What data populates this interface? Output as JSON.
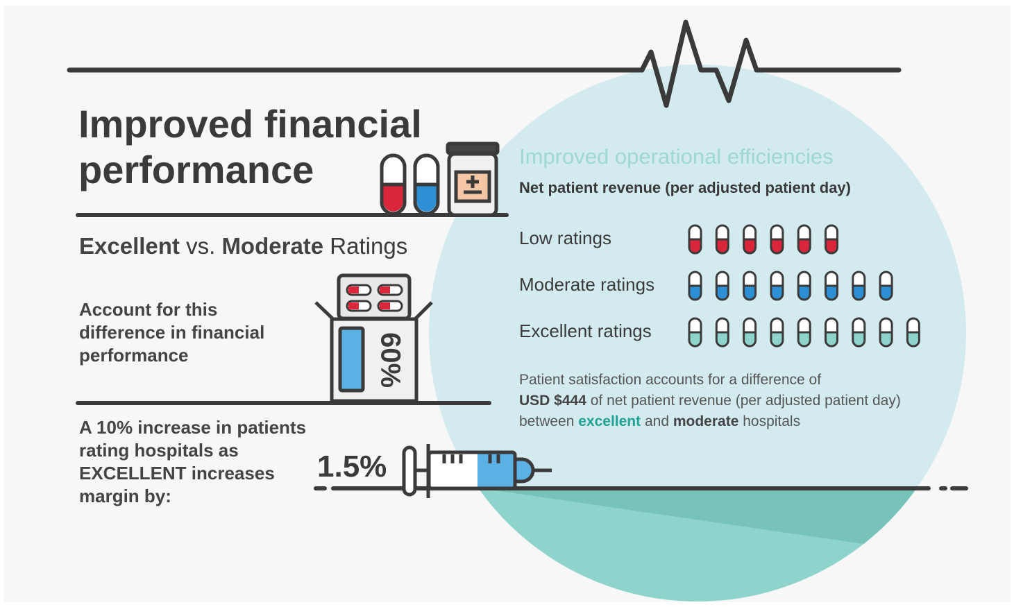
{
  "header": {
    "title": "Improved financial performance"
  },
  "left": {
    "ratings_heading": [
      {
        "text": "Excellent",
        "bold": true
      },
      {
        "text": " vs. ",
        "bold": false
      },
      {
        "text": "Moderate",
        "bold": true
      },
      {
        "text": " Ratings",
        "bold": false
      }
    ],
    "statement_1": "Account for this difference in financial performance",
    "stat_1": "60%",
    "statement_2": "A 10% increase in patients rating hospitals as EXCELLENT increases margin by:",
    "stat_2": "1.5%"
  },
  "right": {
    "title": "Improved operational efficiencies",
    "subtitle": "Net patient revenue (per adjusted patient day)",
    "rows": [
      {
        "label": "Low ratings",
        "count": 6,
        "color": "#d9263a"
      },
      {
        "label": "Moderate ratings",
        "count": 8,
        "color": "#2d8fd4"
      },
      {
        "label": "Excellent ratings",
        "count": 9,
        "color": "#8fd4cc"
      }
    ],
    "note": [
      [
        {
          "text": "Patient satisfaction accounts for a difference of",
          "style": "plain"
        }
      ],
      [
        {
          "text": "USD $444",
          "style": "bold"
        },
        {
          "text": " of net patient revenue (per adjusted patient day)",
          "style": "plain"
        }
      ],
      [
        {
          "text": "between ",
          "style": "plain"
        },
        {
          "text": "excellent",
          "style": "accent"
        },
        {
          "text": " and ",
          "style": "plain"
        },
        {
          "text": "moderate",
          "style": "bold"
        },
        {
          "text": " hospitals",
          "style": "plain"
        }
      ]
    ]
  }
}
